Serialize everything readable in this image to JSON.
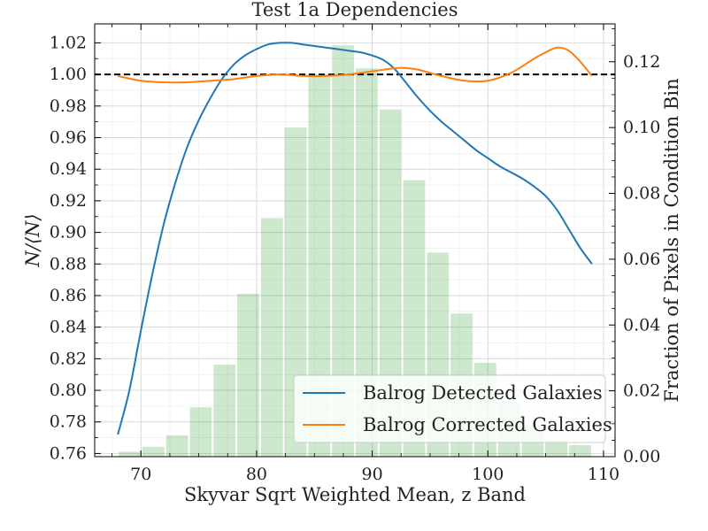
{
  "chart_data": {
    "type": "line",
    "title": "Test 1a Dependencies",
    "xlabel": "Skyvar Sqrt Weighted Mean, z Band",
    "ylabel": "N/⟨N⟩",
    "y2label": "Fraction of Pixels in Condition Bin",
    "xlim": [
      66,
      111
    ],
    "ylim": [
      0.758,
      1.032
    ],
    "y2lim": [
      0.0,
      0.1315
    ],
    "x_ticks": [
      70,
      80,
      90,
      100,
      110
    ],
    "y_ticks": [
      0.76,
      0.78,
      0.8,
      0.82,
      0.84,
      0.86,
      0.88,
      0.9,
      0.92,
      0.94,
      0.96,
      0.98,
      1.0,
      1.02
    ],
    "y2_ticks": [
      0.0,
      0.02,
      0.04,
      0.06,
      0.08,
      0.1,
      0.12
    ],
    "grid": true,
    "legend_position": "lower-right",
    "reference_line": {
      "y": 1.0,
      "style": "dashed",
      "color": "#000000"
    },
    "series": [
      {
        "name": "Balrog Detected Galaxies",
        "color": "#1f77b4",
        "x": [
          68,
          69,
          70,
          71,
          72,
          73,
          74,
          75,
          76,
          77,
          78,
          79,
          80,
          81,
          82,
          83,
          84,
          85,
          86,
          87,
          88,
          89,
          90,
          91,
          92,
          93,
          94,
          95,
          96,
          97,
          98,
          99,
          100,
          101,
          102,
          103,
          104,
          105,
          106,
          107,
          108,
          109
        ],
        "y": [
          0.772,
          0.8,
          0.838,
          0.874,
          0.906,
          0.932,
          0.954,
          0.971,
          0.985,
          0.997,
          1.006,
          1.012,
          1.016,
          1.019,
          1.02,
          1.02,
          1.019,
          1.018,
          1.017,
          1.016,
          1.015,
          1.014,
          1.012,
          1.009,
          1.003,
          0.994,
          0.985,
          0.977,
          0.97,
          0.964,
          0.958,
          0.952,
          0.947,
          0.942,
          0.938,
          0.934,
          0.929,
          0.923,
          0.914,
          0.902,
          0.89,
          0.88
        ]
      },
      {
        "name": "Balrog Corrected Galaxies",
        "color": "#ff7f0e",
        "x": [
          68,
          70,
          72,
          74,
          76,
          78,
          80,
          82,
          84,
          86,
          88,
          90,
          92,
          93,
          94,
          96,
          98,
          100,
          102,
          104,
          105,
          106,
          107,
          108,
          109
        ],
        "y": [
          0.999,
          0.996,
          0.995,
          0.995,
          0.996,
          0.997,
          0.999,
          1.0,
          0.999,
          0.999,
          1.0,
          1.002,
          1.004,
          1.004,
          1.003,
          0.999,
          0.996,
          0.996,
          1.001,
          1.01,
          1.014,
          1.017,
          1.015,
          1.008,
          0.999
        ]
      }
    ],
    "histogram": {
      "axis": "right",
      "color": "#2ca02c",
      "opacity": 0.24,
      "bin_edges": [
        68,
        70.05,
        72.1,
        74.15,
        76.2,
        78.25,
        80.3,
        82.35,
        84.4,
        86.45,
        88.5,
        90.55,
        92.6,
        94.65,
        96.7,
        98.75,
        100.8,
        102.85,
        104.9,
        106.95,
        109
      ],
      "values": [
        0.0015,
        0.003,
        0.0065,
        0.015,
        0.028,
        0.0495,
        0.0725,
        0.1,
        0.116,
        0.125,
        0.118,
        0.1055,
        0.084,
        0.062,
        0.0435,
        0.0285,
        0.0165,
        0.0095,
        0.005,
        0.0035
      ]
    }
  }
}
